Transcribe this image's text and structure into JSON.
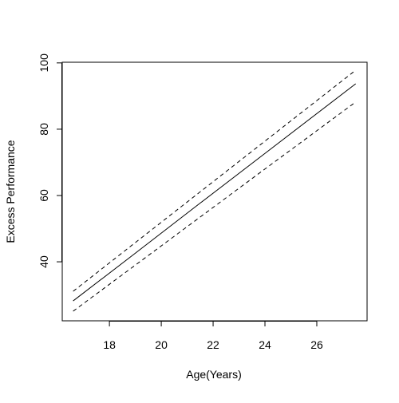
{
  "chart_data": {
    "type": "line",
    "x_label": "Age(Years)",
    "y_label": "Excess Performance",
    "x": [
      16.6,
      19,
      21.5,
      24,
      27.5
    ],
    "series": [
      {
        "color": "#000000",
        "dashed": false,
        "values": [
          28.2,
          42.6,
          57.7,
          72.7,
          93.7
        ]
      },
      {
        "color": "#000000",
        "dashed": true,
        "values": [
          31.1,
          45.8,
          61.1,
          76.4,
          97.8
        ]
      },
      {
        "color": "#000000",
        "dashed": true,
        "values": [
          25.1,
          39.0,
          53.5,
          68.0,
          88.2
        ]
      }
    ],
    "xlim": [
      16.18,
      27.94
    ],
    "ylim": [
      22.2,
      100.2
    ],
    "xticks": [
      18,
      20,
      22,
      24,
      26
    ],
    "yticks": [
      40,
      60,
      80,
      100
    ],
    "grid": false
  }
}
